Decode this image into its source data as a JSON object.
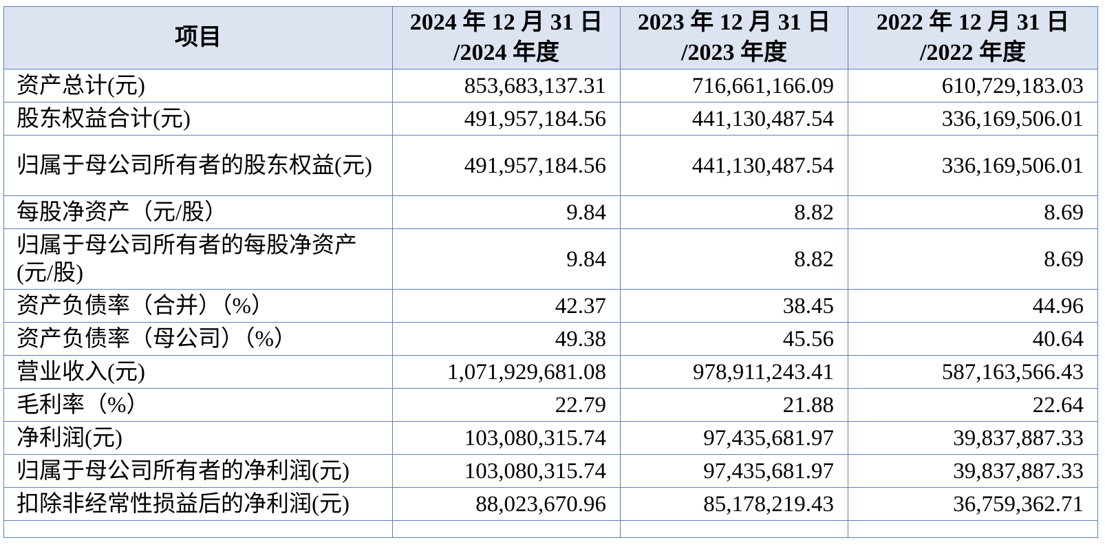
{
  "table": {
    "headers": [
      {
        "line1": "项目",
        "line2": ""
      },
      {
        "line1": "2024 年 12 月 31 日",
        "line2": "/2024 年度"
      },
      {
        "line1": "2023 年 12 月 31 日",
        "line2": "/2023 年度"
      },
      {
        "line1": "2022 年 12 月 31 日",
        "line2": "/2022 年度"
      }
    ],
    "rows": [
      {
        "item": "资产总计(元)",
        "v2024": "853,683,137.31",
        "v2023": "716,661,166.09",
        "v2022": "610,729,183.03"
      },
      {
        "item": "股东权益合计(元)",
        "v2024": "491,957,184.56",
        "v2023": "441,130,487.54",
        "v2022": "336,169,506.01"
      },
      {
        "item": "归属于母公司所有者的股东权益(元)",
        "v2024": "491,957,184.56",
        "v2023": "441,130,487.54",
        "v2022": "336,169,506.01"
      },
      {
        "item": "每股净资产（元/股）",
        "v2024": "9.84",
        "v2023": "8.82",
        "v2022": "8.69"
      },
      {
        "item": "归属于母公司所有者的每股净资产(元/股)",
        "v2024": "9.84",
        "v2023": "8.82",
        "v2022": "8.69"
      },
      {
        "item": "资产负债率（合并）（%）",
        "v2024": "42.37",
        "v2023": "38.45",
        "v2022": "44.96"
      },
      {
        "item": "资产负债率（母公司）（%）",
        "v2024": "49.38",
        "v2023": "45.56",
        "v2022": "40.64"
      },
      {
        "item": "营业收入(元)",
        "v2024": "1,071,929,681.08",
        "v2023": "978,911,243.41",
        "v2022": "587,163,566.43"
      },
      {
        "item": "毛利率（%）",
        "v2024": "22.79",
        "v2023": "21.88",
        "v2022": "22.64"
      },
      {
        "item": "净利润(元)",
        "v2024": "103,080,315.74",
        "v2023": "97,435,681.97",
        "v2022": "39,837,887.33"
      },
      {
        "item": "归属于母公司所有者的净利润(元)",
        "v2024": "103,080,315.74",
        "v2023": "97,435,681.97",
        "v2022": "39,837,887.33"
      },
      {
        "item": "扣除非经常性损益后的净利润(元)",
        "v2024": "88,023,670.96",
        "v2023": "85,178,219.43",
        "v2022": "36,759,362.71"
      }
    ]
  },
  "colors": {
    "border": "#5b7fb8",
    "header_background": "#dce3f1"
  }
}
